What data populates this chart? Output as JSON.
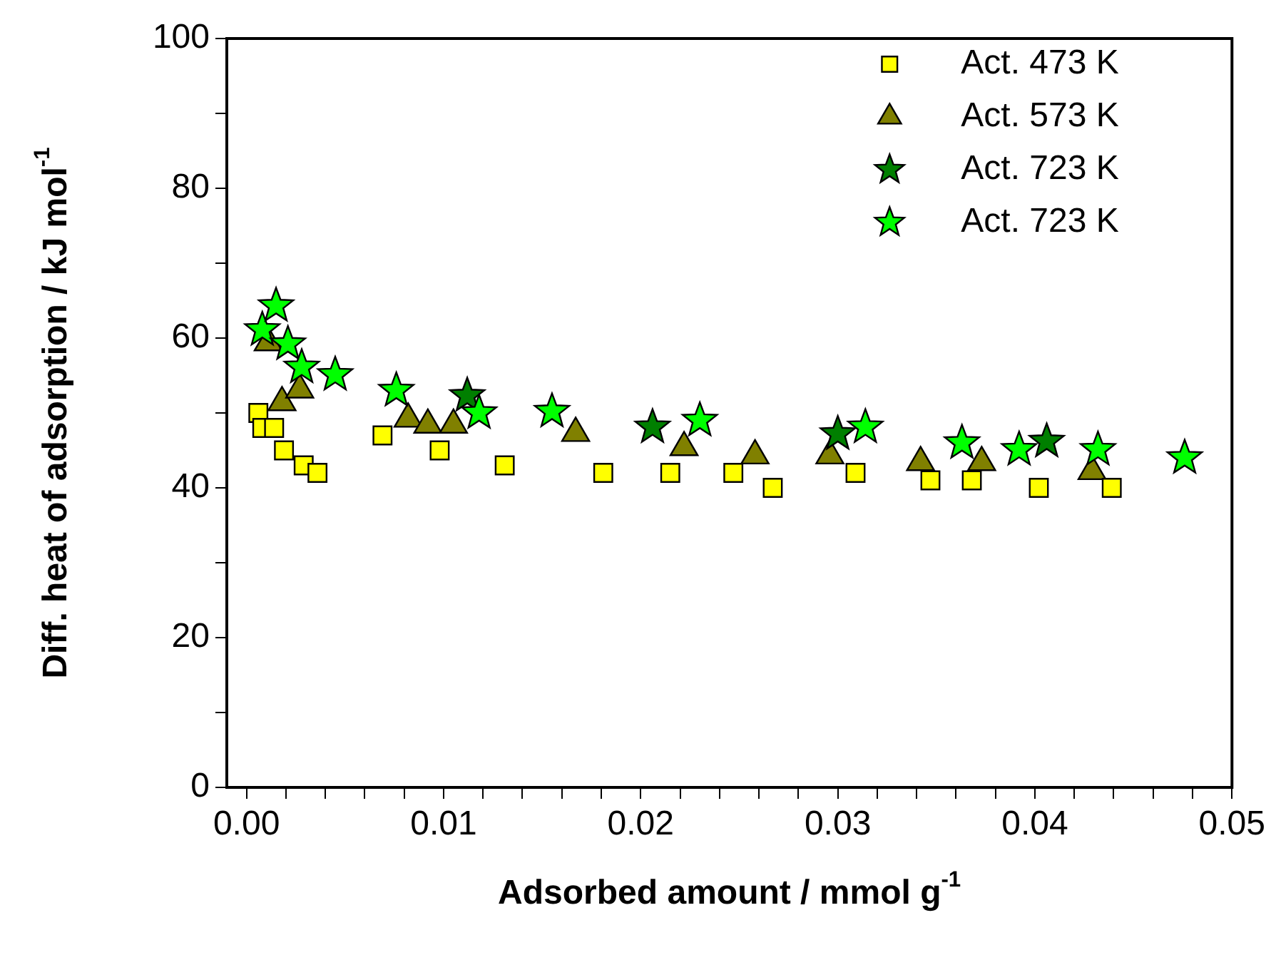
{
  "chart_data": {
    "type": "scatter",
    "xlabel": "Adsorbed amount / mmol g$^{-1}$",
    "ylabel": "Diff. heat of adsorption / kJ mol$^{-1}$",
    "xlim": [
      -0.001,
      0.05
    ],
    "ylim": [
      0,
      100
    ],
    "xticks": [
      {
        "value": 0,
        "label": "0.00"
      },
      {
        "value": 0.002,
        "label": null
      },
      {
        "value": 0.004,
        "label": null
      },
      {
        "value": 0.006,
        "label": null
      },
      {
        "value": 0.008,
        "label": null
      },
      {
        "value": 0.01,
        "label": "0.01"
      },
      {
        "value": 0.012,
        "label": null
      },
      {
        "value": 0.014,
        "label": null
      },
      {
        "value": 0.016,
        "label": null
      },
      {
        "value": 0.018,
        "label": null
      },
      {
        "value": 0.02,
        "label": "0.02"
      },
      {
        "value": 0.022,
        "label": null
      },
      {
        "value": 0.024,
        "label": null
      },
      {
        "value": 0.026,
        "label": null
      },
      {
        "value": 0.028,
        "label": null
      },
      {
        "value": 0.03,
        "label": "0.03"
      },
      {
        "value": 0.032,
        "label": null
      },
      {
        "value": 0.034,
        "label": null
      },
      {
        "value": 0.036,
        "label": null
      },
      {
        "value": 0.038,
        "label": null
      },
      {
        "value": 0.04,
        "label": "0.04"
      },
      {
        "value": 0.042,
        "label": null
      },
      {
        "value": 0.044,
        "label": null
      },
      {
        "value": 0.046,
        "label": null
      },
      {
        "value": 0.048,
        "label": null
      },
      {
        "value": 0.05,
        "label": "0.05"
      }
    ],
    "yticks": [
      0,
      {
        "value": 10,
        "label": null
      },
      20,
      {
        "value": 30,
        "label": null
      },
      40,
      {
        "value": 50,
        "label": null
      },
      60,
      {
        "value": 70,
        "label": null
      },
      80,
      {
        "value": 90,
        "label": null
      },
      100
    ],
    "grid": false,
    "legend": "top right",
    "series": [
      {
        "name": "Act. 473 K",
        "color": "#ffff00",
        "marker": "square",
        "x": [
          0.0006,
          0.0008,
          0.0014,
          0.0019,
          0.0029,
          0.0036,
          0.0069,
          0.0098,
          0.0131,
          0.0181,
          0.0215,
          0.0247,
          0.0267,
          0.0309,
          0.0347,
          0.0368,
          0.0402,
          0.0439
        ],
        "values": [
          50,
          48,
          48,
          45,
          43,
          42,
          47,
          45,
          43,
          42,
          42,
          42,
          40,
          42,
          41,
          41,
          40,
          40
        ]
      },
      {
        "name": "Act. 573 K",
        "color": "#808000",
        "marker": "triangle",
        "x": [
          0.0011,
          0.0018,
          0.0027,
          0.0082,
          0.0092,
          0.0105,
          0.0167,
          0.0222,
          0.0258,
          0.0296,
          0.0342,
          0.0373,
          0.0429
        ],
        "values": [
          59.4,
          51.4,
          53.1,
          49.2,
          48.4,
          48.4,
          47.3,
          45.4,
          44.3,
          44.3,
          43.4,
          43.4,
          42.2
        ]
      },
      {
        "name": "Act. 723 K",
        "color": "#007f00",
        "marker": "star",
        "x": [
          0.0112,
          0.0206,
          0.03,
          0.0406
        ],
        "values": [
          52.3,
          48.1,
          47.2,
          46.2
        ]
      },
      {
        "name": "Act. 723 K",
        "color": "#00ff00",
        "marker": "star",
        "x": [
          0.0008,
          0.0015,
          0.0021,
          0.0028,
          0.0045,
          0.0076,
          0.0118,
          0.0155,
          0.023,
          0.0314,
          0.0363,
          0.0392,
          0.0432,
          0.0476
        ],
        "values": [
          61.1,
          64.3,
          59.2,
          56.1,
          55.1,
          53,
          50,
          50.2,
          49,
          48.1,
          46,
          45.1,
          45.1,
          44
        ]
      }
    ]
  }
}
